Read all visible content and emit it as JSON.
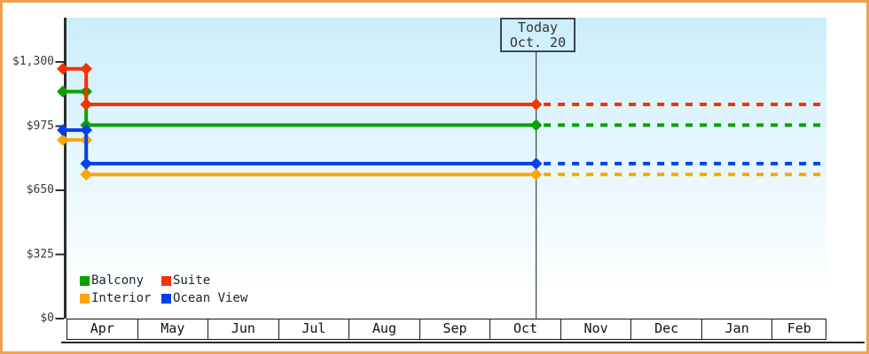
{
  "window": {
    "type": "cruise-price-history-chart",
    "background_color": "#ffffff",
    "frame_border_color": "#efa250"
  },
  "colors": {
    "plot_bg_top": "#cbeefb",
    "plot_bg_bottom": "#ffffff",
    "axis": "#2d2d2d",
    "month_border": "#161616",
    "today_line": "#414e57"
  },
  "chart_data": {
    "type": "line",
    "title": "",
    "x_axis": {
      "labels": [
        "Apr",
        "May",
        "Jun",
        "Jul",
        "Aug",
        "Sep",
        "Oct",
        "Nov",
        "Dec",
        "Jan",
        "Feb"
      ]
    },
    "y_axis": {
      "min": 0,
      "max": 1300,
      "tick_values": [
        0,
        325,
        650,
        975,
        1300
      ],
      "tick_labels": [
        "$0",
        "$325",
        "$650",
        "$975",
        "$1,300"
      ]
    },
    "today_marker": {
      "line1": "Today",
      "line2": "Oct. 20",
      "date": "Oct 20"
    },
    "series": [
      {
        "name": "Balcony",
        "color": "#0aa000",
        "points": [
          {
            "date": "Mar 29",
            "price": 1150
          },
          {
            "date": "Apr 8",
            "price": 1150
          },
          {
            "date": "Apr 8",
            "price": 980
          },
          {
            "date": "Oct 20",
            "price": 980
          }
        ],
        "forecast": {
          "price": 980,
          "style": "dotted",
          "to": "Feb 28"
        }
      },
      {
        "name": "Suite",
        "color": "#f23300",
        "points": [
          {
            "date": "Mar 29",
            "price": 1265
          },
          {
            "date": "Apr 8",
            "price": 1265
          },
          {
            "date": "Apr 8",
            "price": 1085
          },
          {
            "date": "Oct 20",
            "price": 1085
          }
        ],
        "forecast": {
          "price": 1085,
          "style": "dotted",
          "to": "Feb 28"
        }
      },
      {
        "name": "Interior",
        "color": "#ffa500",
        "points": [
          {
            "date": "Mar 29",
            "price": 905
          },
          {
            "date": "Apr 8",
            "price": 905
          },
          {
            "date": "Apr 8",
            "price": 730
          },
          {
            "date": "Oct 20",
            "price": 730
          }
        ],
        "forecast": {
          "price": 730,
          "style": "dotted",
          "to": "Feb 28"
        }
      },
      {
        "name": "Ocean View",
        "color": "#0540f0",
        "points": [
          {
            "date": "Mar 29",
            "price": 955
          },
          {
            "date": "Apr 8",
            "price": 955
          },
          {
            "date": "Apr 8",
            "price": 785
          },
          {
            "date": "Oct 20",
            "price": 785
          }
        ],
        "forecast": {
          "price": 785,
          "style": "dotted",
          "to": "Feb 28"
        }
      }
    ],
    "legend": {
      "position": "bottom-left-inside",
      "rows": [
        [
          "Balcony",
          "Suite"
        ],
        [
          "Interior",
          "Ocean View"
        ]
      ]
    }
  }
}
